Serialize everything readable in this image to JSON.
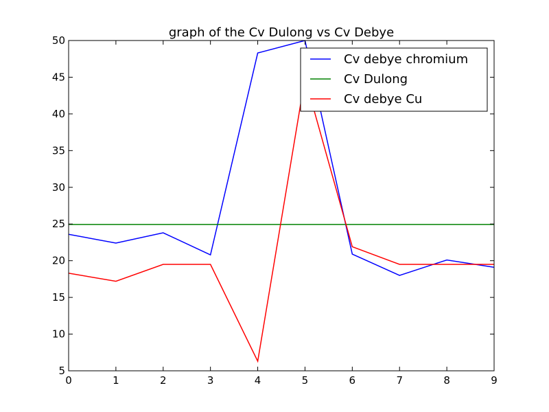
{
  "chart_data": {
    "type": "line",
    "title": "graph of the Cv Dulong vs Cv Debye",
    "xlabel": "",
    "ylabel": "",
    "xlim": [
      0,
      9
    ],
    "ylim": [
      5,
      50
    ],
    "x": [
      0,
      1,
      2,
      3,
      4,
      5,
      6,
      7,
      8,
      9
    ],
    "xticks": [
      "0",
      "1",
      "2",
      "3",
      "4",
      "5",
      "6",
      "7",
      "8",
      "9"
    ],
    "yticks": [
      "5",
      "10",
      "15",
      "20",
      "25",
      "30",
      "35",
      "40",
      "45",
      "50"
    ],
    "grid": false,
    "legend_position": "top-right",
    "series": [
      {
        "name": "Cv debye chromium",
        "color": "#0000ff",
        "values": [
          23.6,
          22.4,
          23.8,
          20.8,
          48.3,
          50.0,
          20.9,
          18.0,
          20.1,
          19.1
        ]
      },
      {
        "name": "Cv Dulong",
        "color": "#008000",
        "values": [
          24.94,
          24.94,
          24.94,
          24.94,
          24.94,
          24.94,
          24.94,
          24.94,
          24.94,
          24.94
        ]
      },
      {
        "name": "Cv debye Cu",
        "color": "#ff0000",
        "values": [
          18.3,
          17.2,
          19.5,
          19.5,
          6.3,
          44.9,
          21.9,
          19.5,
          19.5,
          19.5
        ]
      }
    ]
  }
}
